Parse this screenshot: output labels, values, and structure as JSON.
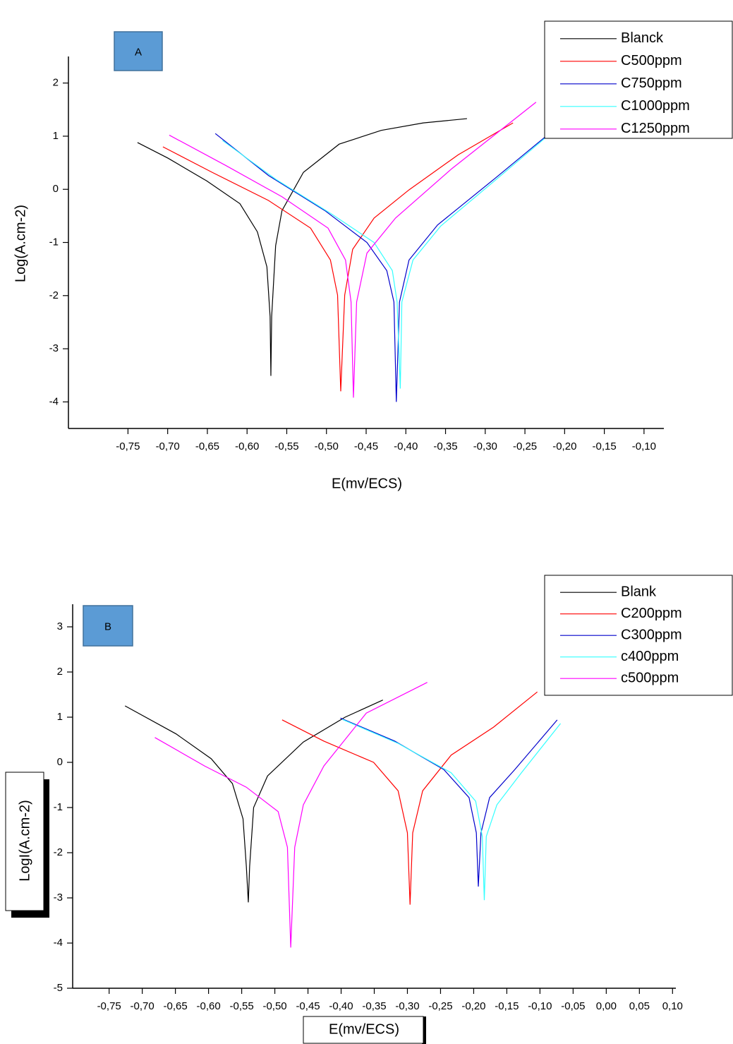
{
  "chart_data": [
    {
      "type": "line",
      "annotation": "A",
      "xlabel": "E(mv/ECS)",
      "ylabel": "Log(A.cm-2)",
      "legend": "upper right",
      "xlim": [
        -0.825,
        -0.075
      ],
      "ylim": [
        -4.5,
        2.5
      ],
      "xticks": [
        {
          "value": -0.75,
          "label": "-0,75"
        },
        {
          "value": -0.7,
          "label": "-0,70"
        },
        {
          "value": -0.65,
          "label": "-0,65"
        },
        {
          "value": -0.6,
          "label": "-0,60"
        },
        {
          "value": -0.55,
          "label": "-0,55"
        },
        {
          "value": -0.5,
          "label": "-0,50"
        },
        {
          "value": -0.45,
          "label": "-0,45"
        },
        {
          "value": -0.4,
          "label": "-0,40"
        },
        {
          "value": -0.35,
          "label": "-0,35"
        },
        {
          "value": -0.3,
          "label": "-0,30"
        },
        {
          "value": -0.25,
          "label": "-0,25"
        },
        {
          "value": -0.2,
          "label": "-0,20"
        },
        {
          "value": -0.15,
          "label": "-0,15"
        },
        {
          "value": -0.1,
          "label": "-0,10"
        }
      ],
      "yticks": [
        -4,
        -3,
        -2,
        -1,
        0,
        1,
        2
      ],
      "series": [
        {
          "name": "Blanck",
          "color": "#000000",
          "x": [
            -0.738,
            -0.7,
            -0.651,
            -0.609,
            -0.587,
            -0.575,
            -0.571,
            -0.57,
            -0.569,
            -0.564,
            -0.556,
            -0.529,
            -0.484,
            -0.431,
            -0.378,
            -0.323
          ],
          "values": [
            0.88,
            0.59,
            0.16,
            -0.27,
            -0.8,
            -1.46,
            -2.39,
            -3.51,
            -2.39,
            -1.06,
            -0.4,
            0.32,
            0.85,
            1.11,
            1.25,
            1.33
          ]
        },
        {
          "name": "C500ppm",
          "color": "#ff0000",
          "x": [
            -0.706,
            -0.644,
            -0.573,
            -0.52,
            -0.495,
            -0.486,
            -0.482,
            -0.477,
            -0.467,
            -0.44,
            -0.396,
            -0.334,
            -0.265
          ],
          "values": [
            0.8,
            0.32,
            -0.21,
            -0.73,
            -1.33,
            -1.99,
            -3.8,
            -1.99,
            -1.13,
            -0.54,
            -0.01,
            0.65,
            1.25
          ]
        },
        {
          "name": "C750ppm",
          "color": "#0000cc",
          "x": [
            -0.64,
            -0.573,
            -0.502,
            -0.449,
            -0.424,
            -0.415,
            -0.412,
            -0.408,
            -0.396,
            -0.36,
            -0.289,
            -0.225
          ],
          "values": [
            1.05,
            0.26,
            -0.4,
            -1.0,
            -1.53,
            -2.12,
            -4.0,
            -2.12,
            -1.33,
            -0.67,
            0.19,
            0.98
          ]
        },
        {
          "name": "C1000ppm",
          "color": "#33ffff",
          "x": [
            -0.631,
            -0.564,
            -0.493,
            -0.44,
            -0.417,
            -0.411,
            -0.407,
            -0.405,
            -0.391,
            -0.356,
            -0.289,
            -0.225
          ],
          "values": [
            0.92,
            0.19,
            -0.47,
            -1.0,
            -1.53,
            -2.12,
            -3.75,
            -2.12,
            -1.33,
            -0.69,
            0.15,
            0.96
          ]
        },
        {
          "name": "C1250ppm",
          "color": "#ff00ff",
          "x": [
            -0.698,
            -0.627,
            -0.556,
            -0.498,
            -0.476,
            -0.469,
            -0.466,
            -0.462,
            -0.449,
            -0.413,
            -0.342,
            -0.236
          ],
          "values": [
            1.02,
            0.45,
            -0.14,
            -0.73,
            -1.33,
            -2.12,
            -3.92,
            -2.12,
            -1.2,
            -0.54,
            0.39,
            1.64
          ]
        }
      ]
    },
    {
      "type": "line",
      "annotation": "B",
      "xlabel": "E(mv/ECS)",
      "ylabel": "LogI(A.cm-2)",
      "legend": "upper right",
      "xlim": [
        -0.805,
        0.105
      ],
      "ylim": [
        -5,
        3.5
      ],
      "xticks": [
        {
          "value": -0.75,
          "label": "-0,75"
        },
        {
          "value": -0.7,
          "label": "-0,70"
        },
        {
          "value": -0.65,
          "label": "-0,65"
        },
        {
          "value": -0.6,
          "label": "-0,60"
        },
        {
          "value": -0.55,
          "label": "-0,55"
        },
        {
          "value": -0.5,
          "label": "-0,50"
        },
        {
          "value": -0.45,
          "label": "-0,45"
        },
        {
          "value": -0.4,
          "label": "-0,40"
        },
        {
          "value": -0.35,
          "label": "-0,35"
        },
        {
          "value": -0.3,
          "label": "-0,30"
        },
        {
          "value": -0.25,
          "label": "-0,25"
        },
        {
          "value": -0.2,
          "label": "-0,20"
        },
        {
          "value": -0.15,
          "label": "-0,15"
        },
        {
          "value": -0.1,
          "label": "-0,10"
        },
        {
          "value": -0.05,
          "label": "-0,05"
        },
        {
          "value": 0,
          "label": "0,00"
        },
        {
          "value": 0.05,
          "label": "0,05"
        },
        {
          "value": 0.1,
          "label": "0,10"
        }
      ],
      "yticks": [
        -5,
        -4,
        -3,
        -2,
        -1,
        0,
        1,
        2,
        3
      ],
      "series": [
        {
          "name": "Blank",
          "color": "#000000",
          "x": [
            -0.726,
            -0.649,
            -0.596,
            -0.564,
            -0.548,
            -0.543,
            -0.54,
            -0.538,
            -0.532,
            -0.511,
            -0.457,
            -0.394,
            -0.337
          ],
          "values": [
            1.25,
            0.63,
            0.08,
            -0.47,
            -1.25,
            -2.3,
            -3.1,
            -2.3,
            -1.0,
            -0.3,
            0.45,
            1.0,
            1.38
          ]
        },
        {
          "name": "C200ppm",
          "color": "#ff0000",
          "x": [
            -0.489,
            -0.426,
            -0.351,
            -0.314,
            -0.3,
            -0.296,
            -0.292,
            -0.277,
            -0.234,
            -0.17,
            -0.104
          ],
          "values": [
            0.94,
            0.47,
            0.0,
            -0.63,
            -1.56,
            -3.15,
            -1.56,
            -0.63,
            0.16,
            0.78,
            1.56
          ]
        },
        {
          "name": "C300ppm",
          "color": "#0000cc",
          "x": [
            -0.401,
            -0.319,
            -0.245,
            -0.207,
            -0.196,
            -0.193,
            -0.189,
            -0.176,
            -0.138,
            -0.074
          ],
          "values": [
            0.98,
            0.47,
            -0.16,
            -0.78,
            -1.56,
            -2.75,
            -1.56,
            -0.78,
            -0.16,
            0.94
          ]
        },
        {
          "name": "c400ppm",
          "color": "#33ffff",
          "x": [
            -0.398,
            -0.314,
            -0.234,
            -0.197,
            -0.187,
            -0.184,
            -0.181,
            -0.165,
            -0.128,
            -0.069
          ],
          "values": [
            0.95,
            0.42,
            -0.23,
            -0.86,
            -1.64,
            -3.05,
            -1.64,
            -0.94,
            -0.23,
            0.86
          ]
        },
        {
          "name": "c500ppm",
          "color": "#ff00ff",
          "x": [
            -0.681,
            -0.606,
            -0.543,
            -0.495,
            -0.481,
            -0.476,
            -0.47,
            -0.457,
            -0.426,
            -0.362,
            -0.27
          ],
          "values": [
            0.55,
            -0.08,
            -0.55,
            -1.09,
            -1.88,
            -4.1,
            -1.88,
            -0.94,
            -0.08,
            1.09,
            1.77
          ]
        }
      ]
    }
  ]
}
